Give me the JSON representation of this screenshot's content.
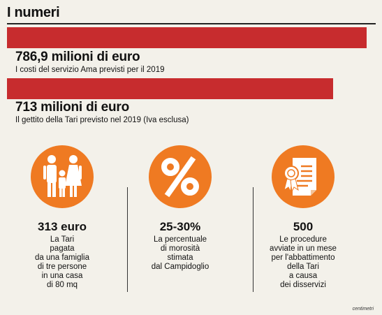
{
  "title": "I numeri",
  "chart_data": {
    "type": "bar",
    "orientation": "horizontal",
    "categories": [
      "I costi del servizio Ama previsti per il 2019",
      "Il gettito della Tari previsto nel 2019 (Iva esclusa)"
    ],
    "values": [
      786.9,
      713
    ],
    "value_labels": [
      "786,9 milioni di euro",
      "713 milioni di euro"
    ],
    "unit": "milioni di euro",
    "xlim": [
      0,
      786.9
    ],
    "grid": false,
    "color": "#c72c2e"
  },
  "stats": [
    {
      "icon": "family-icon",
      "value": "313 euro",
      "description": "La Tari\npagata\nda una famiglia\ndi tre persone\nin una casa\ndi 80 mq"
    },
    {
      "icon": "percent-icon",
      "value": "25-30%",
      "description": "La percentuale\ndi morosità\nstimata\ndal Campidoglio"
    },
    {
      "icon": "certificate-icon",
      "value": "500",
      "description": "Le procedure\navviate in un mese\nper l'abbattimento\ndella Tari\na causa\ndei disservizi"
    }
  ],
  "colors": {
    "bar": "#c72c2e",
    "icon_bg": "#ef7a22",
    "background": "#f3f1ea"
  },
  "credit": "centimetri"
}
